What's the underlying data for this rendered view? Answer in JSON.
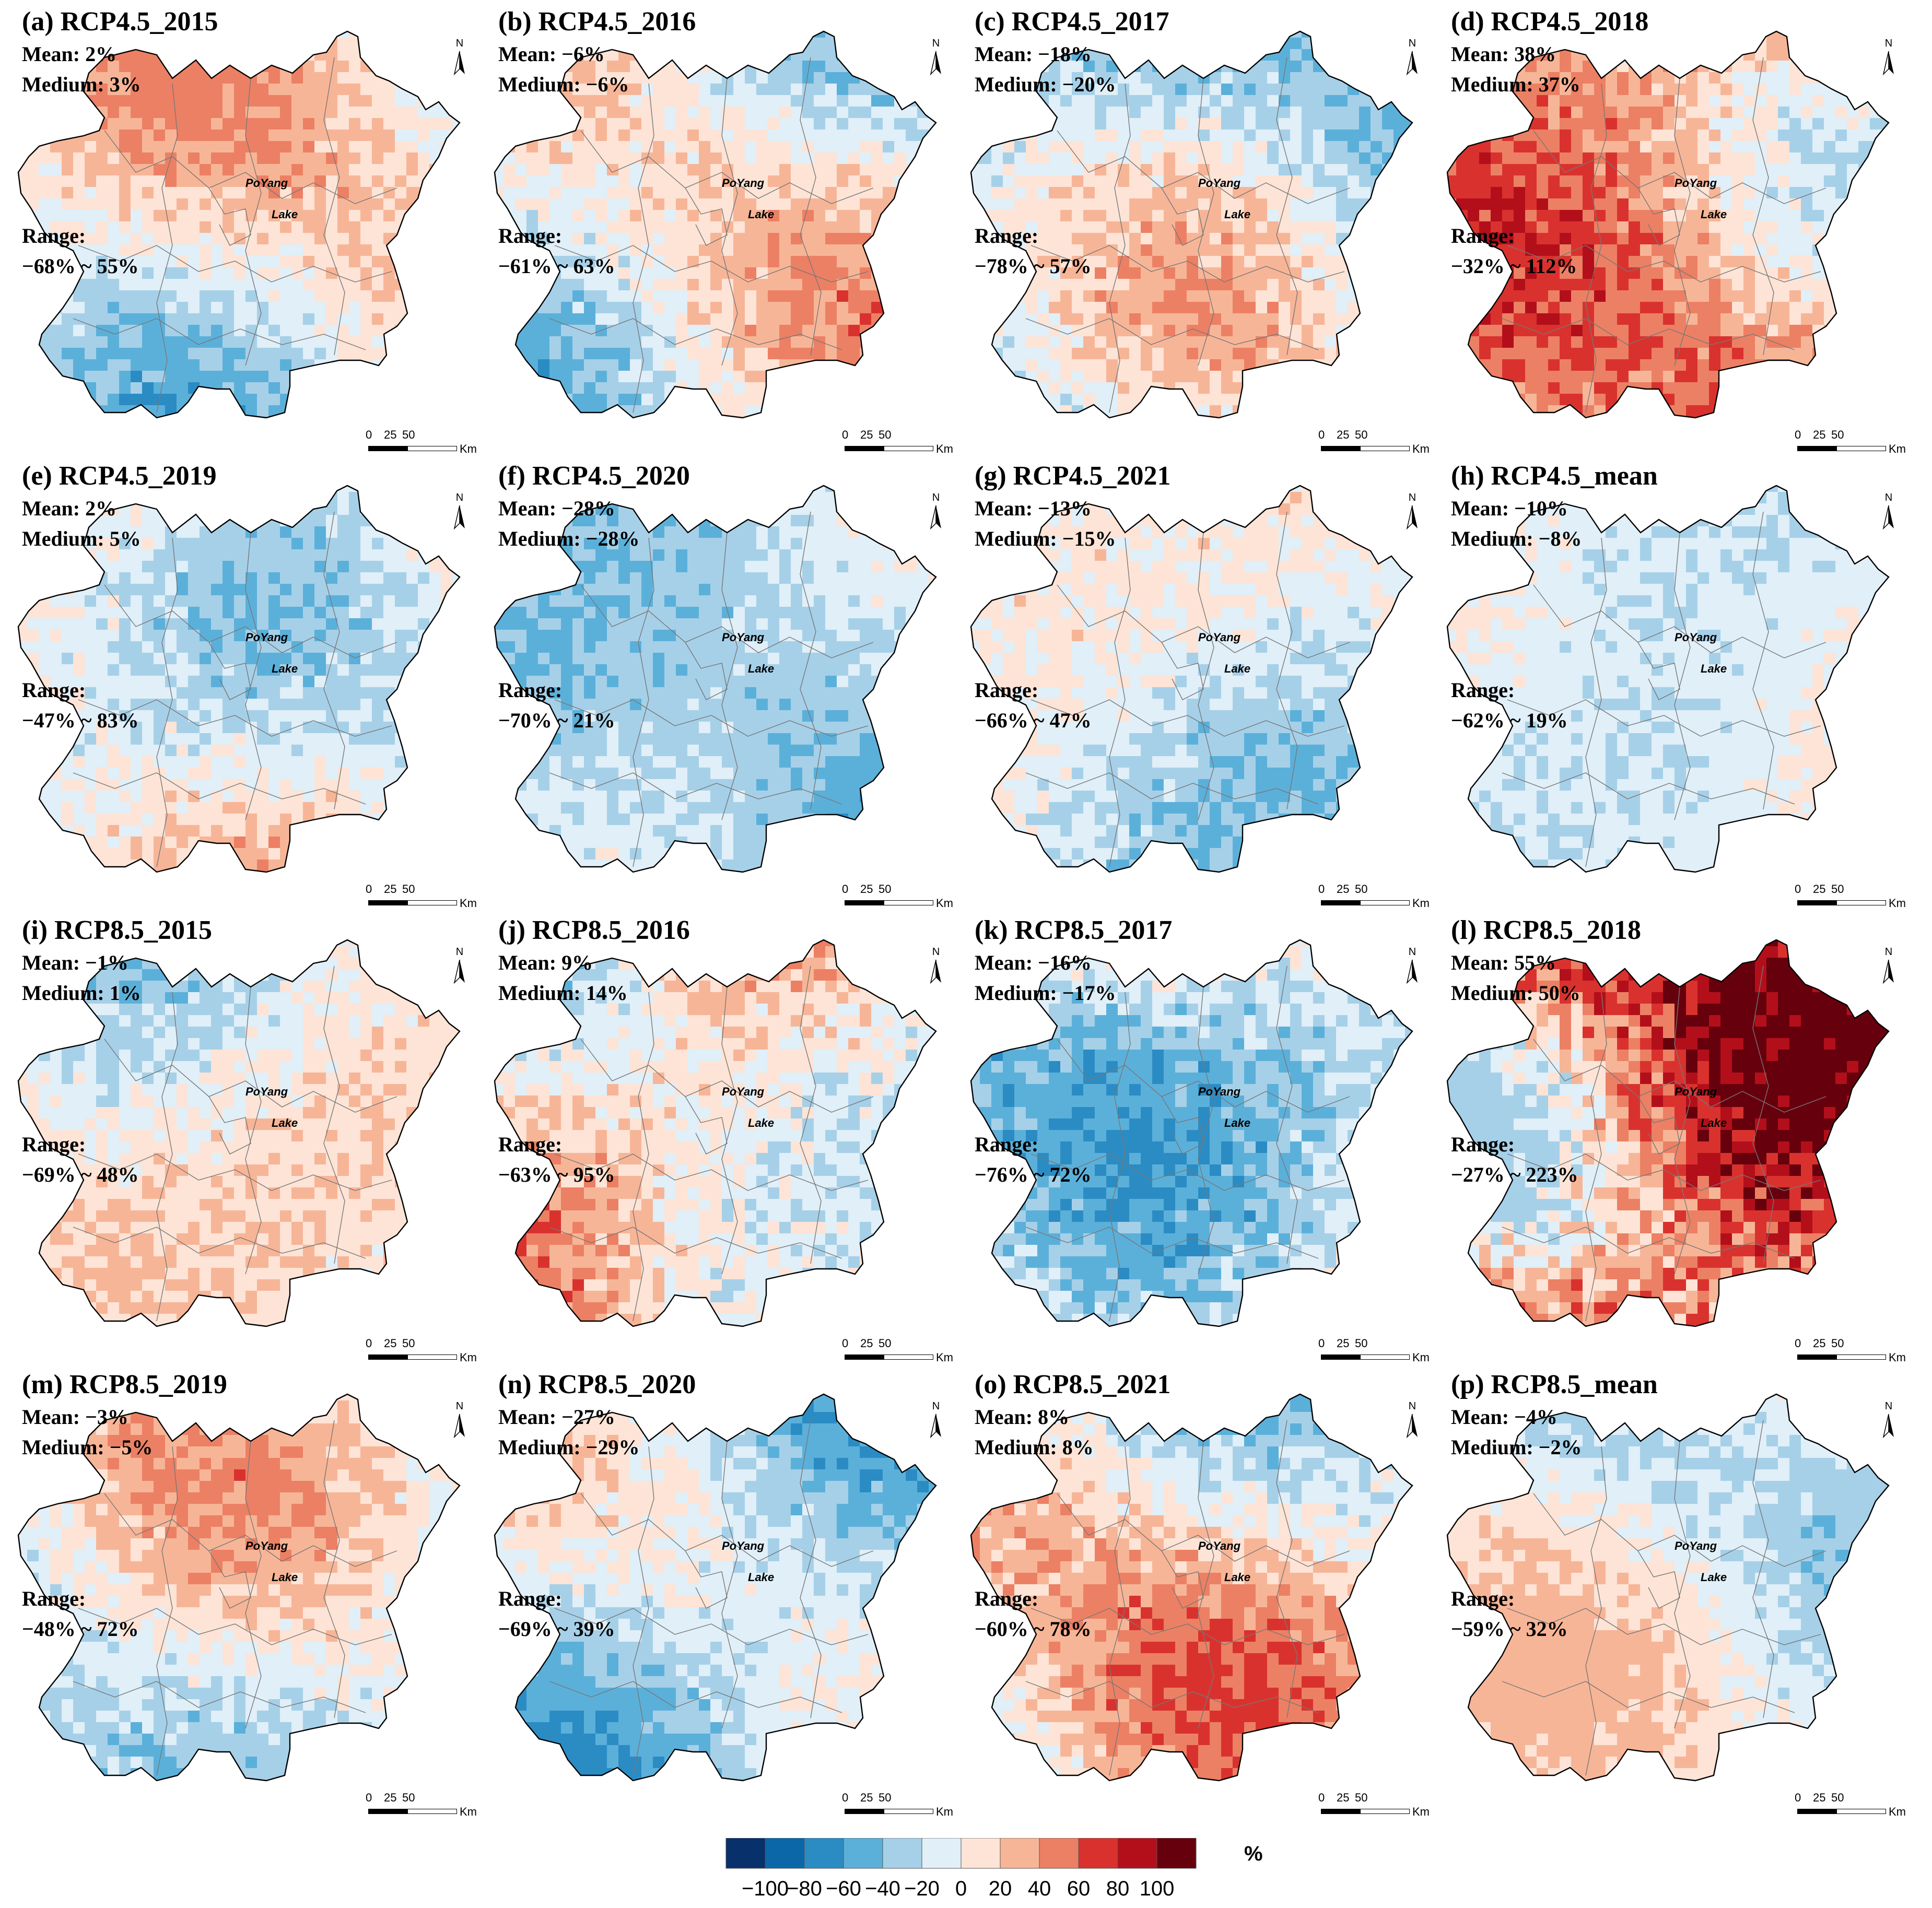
{
  "figure": {
    "panels": [
      {
        "id": "a",
        "title": "(a)  RCP4.5_2015",
        "mean_label": "Mean: 2%",
        "medium_label": "Medium: 3%",
        "range_label": "Range:",
        "range_value": "−68% ~ 55%",
        "mean": 2,
        "medium": 3,
        "min": -68,
        "max": 55
      },
      {
        "id": "b",
        "title": "(b)  RCP4.5_2016",
        "mean_label": "Mean: −6%",
        "medium_label": "Medium: −6%",
        "range_label": "Range:",
        "range_value": "−61% ~ 63%",
        "mean": -6,
        "medium": -6,
        "min": -61,
        "max": 63
      },
      {
        "id": "c",
        "title": "(c)  RCP4.5_2017",
        "mean_label": "Mean: −18%",
        "medium_label": "Medium: −20%",
        "range_label": "Range:",
        "range_value": "−78% ~ 57%",
        "mean": -18,
        "medium": -20,
        "min": -78,
        "max": 57
      },
      {
        "id": "d",
        "title": "(d)  RCP4.5_2018",
        "mean_label": "Mean: 38%",
        "medium_label": "Medium: 37%",
        "range_label": "Range:",
        "range_value": "−32% ~ 112%",
        "mean": 38,
        "medium": 37,
        "min": -32,
        "max": 112
      },
      {
        "id": "e",
        "title": "(e)  RCP4.5_2019",
        "mean_label": "Mean: 2%",
        "medium_label": "Medium: 5%",
        "range_label": "Range:",
        "range_value": "−47% ~ 83%",
        "mean": 2,
        "medium": 5,
        "min": -47,
        "max": 83
      },
      {
        "id": "f",
        "title": "(f)  RCP4.5_2020",
        "mean_label": "Mean: −28%",
        "medium_label": "Medium: −28%",
        "range_label": "Range:",
        "range_value": "−70% ~ 21%",
        "mean": -28,
        "medium": -28,
        "min": -70,
        "max": 21
      },
      {
        "id": "g",
        "title": "(g)  RCP4.5_2021",
        "mean_label": "Mean: −13%",
        "medium_label": "Medium: −15%",
        "range_label": "Range:",
        "range_value": "−66% ~ 47%",
        "mean": -13,
        "medium": -15,
        "min": -66,
        "max": 47
      },
      {
        "id": "h",
        "title": "(h)  RCP4.5_mean",
        "mean_label": "Mean: −10%",
        "medium_label": "Medium: −8%",
        "range_label": "Range:",
        "range_value": "−62% ~ 19%",
        "mean": -10,
        "medium": -8,
        "min": -62,
        "max": 19
      },
      {
        "id": "i",
        "title": "(i)  RCP8.5_2015",
        "mean_label": "Mean: −1%",
        "medium_label": "Medium: 1%",
        "range_label": "Range:",
        "range_value": "−69% ~ 48%",
        "mean": -1,
        "medium": 1,
        "min": -69,
        "max": 48
      },
      {
        "id": "j",
        "title": "(j)  RCP8.5_2016",
        "mean_label": "Mean: 9%",
        "medium_label": "Medium: 14%",
        "range_label": "Range:",
        "range_value": "−63% ~ 95%",
        "mean": 9,
        "medium": 14,
        "min": -63,
        "max": 95
      },
      {
        "id": "k",
        "title": "(k)  RCP8.5_2017",
        "mean_label": "Mean: −16%",
        "medium_label": "Medium: −17%",
        "range_label": "Range:",
        "range_value": "−76% ~ 72%",
        "mean": -16,
        "medium": -17,
        "min": -76,
        "max": 72
      },
      {
        "id": "l",
        "title": "(l)  RCP8.5_2018",
        "mean_label": "Mean: 55%",
        "medium_label": "Medium: 50%",
        "range_label": "Range:",
        "range_value": "−27% ~ 223%",
        "mean": 55,
        "medium": 50,
        "min": -27,
        "max": 223
      },
      {
        "id": "m",
        "title": "(m)  RCP8.5_2019",
        "mean_label": "Mean: −3%",
        "medium_label": "Medium: −5%",
        "range_label": "Range:",
        "range_value": "−48% ~ 72%",
        "mean": -3,
        "medium": -5,
        "min": -48,
        "max": 72
      },
      {
        "id": "n",
        "title": "(n)  RCP8.5_2020",
        "mean_label": "Mean: −27%",
        "medium_label": "Medium: −29%",
        "range_label": "Range:",
        "range_value": "−69% ~ 39%",
        "mean": -27,
        "medium": -29,
        "min": -69,
        "max": 39
      },
      {
        "id": "o",
        "title": "(o)  RCP8.5_2021",
        "mean_label": "Mean: 8%",
        "medium_label": "Medium: 8%",
        "range_label": "Range:",
        "range_value": "−60% ~ 78%",
        "mean": 8,
        "medium": 8,
        "min": -60,
        "max": 78
      },
      {
        "id": "p",
        "title": "(p)  RCP8.5_mean",
        "mean_label": "Mean: −4%",
        "medium_label": "Medium: −2%",
        "range_label": "Range:",
        "range_value": "−59% ~ 32%",
        "mean": -4,
        "medium": -2,
        "min": -59,
        "max": 32
      }
    ],
    "lake_label_line1": "PoYang",
    "lake_label_line2": "Lake",
    "north_label": "N",
    "scale": {
      "ticks": [
        "0",
        "25",
        "50"
      ],
      "unit": "Km"
    },
    "legend": {
      "unit": "%",
      "ticks": [
        "−100",
        "−80",
        "−60",
        "−40",
        "−20",
        "0",
        "20",
        "40",
        "60",
        "80",
        "100"
      ],
      "colors": [
        "#08306b",
        "#0b67a8",
        "#2b8cc4",
        "#5bb0da",
        "#a6d0e8",
        "#e0eff8",
        "#fde4d6",
        "#f7b597",
        "#ec8064",
        "#d9322e",
        "#b30f1b",
        "#67000d"
      ]
    },
    "colors": {
      "boundary": "#000000",
      "county_lines": "#777777"
    }
  }
}
